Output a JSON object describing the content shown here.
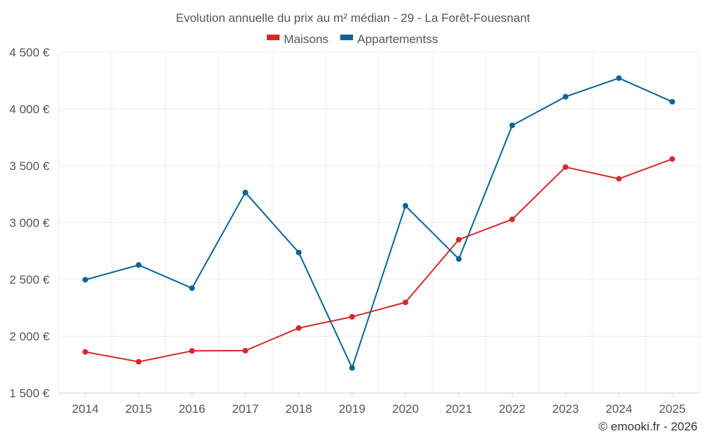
{
  "chart_data": {
    "type": "line",
    "title": "Evolution annuelle du prix au m² médian - 29 - La Forêt-Fouesnant",
    "categories": [
      "2014",
      "2015",
      "2016",
      "2017",
      "2018",
      "2019",
      "2020",
      "2021",
      "2022",
      "2023",
      "2024",
      "2025"
    ],
    "series": [
      {
        "name": "Maisons",
        "color": "#d42a2a",
        "values": [
          1862,
          1775,
          1871,
          1873,
          2072,
          2171,
          2298,
          2850,
          3029,
          3489,
          3386,
          3560
        ]
      },
      {
        "name": "Appartementss",
        "color": "#0a6496",
        "values": [
          2497,
          2627,
          2423,
          3265,
          2737,
          1721,
          3148,
          2680,
          3856,
          4108,
          4272,
          4064
        ]
      }
    ],
    "ylim": [
      1500,
      4500
    ],
    "yticks": [
      1500,
      2000,
      2500,
      3000,
      3500,
      4000,
      4500
    ],
    "ytick_labels": [
      "1 500 €",
      "2 000 €",
      "2 500 €",
      "3 000 €",
      "3 500 €",
      "4 000 €",
      "4 500 €"
    ],
    "grid": true,
    "legend": "top-center",
    "xlabel": "",
    "ylabel": ""
  },
  "credit": "© emooki.fr - 2026"
}
